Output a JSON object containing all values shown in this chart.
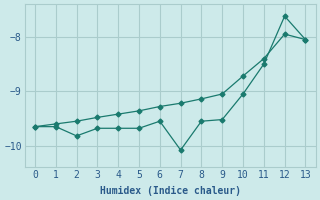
{
  "xlabel": "Humidex (Indice chaleur)",
  "ylabel": "",
  "background_color": "#cdeaea",
  "grid_color": "#aacccc",
  "line_color": "#1a7a6e",
  "xlim": [
    -0.5,
    13.5
  ],
  "ylim": [
    -10.4,
    -7.4
  ],
  "xticks": [
    0,
    1,
    2,
    3,
    4,
    5,
    6,
    7,
    8,
    9,
    10,
    11,
    12,
    13
  ],
  "yticks": [
    -10,
    -9,
    -8
  ],
  "line1_x": [
    0,
    1,
    2,
    3,
    4,
    5,
    6,
    7,
    8,
    9,
    10,
    11,
    12,
    13
  ],
  "line1_y": [
    -9.65,
    -9.65,
    -9.82,
    -9.68,
    -9.68,
    -9.68,
    -9.55,
    -10.08,
    -9.55,
    -9.52,
    -9.05,
    -8.5,
    -7.62,
    -8.05
  ],
  "line2_x": [
    0,
    1,
    2,
    3,
    4,
    5,
    6,
    7,
    8,
    9,
    10,
    11,
    12,
    13
  ],
  "line2_y": [
    -9.65,
    -9.6,
    -9.55,
    -9.48,
    -9.42,
    -9.36,
    -9.28,
    -9.22,
    -9.14,
    -9.05,
    -8.72,
    -8.4,
    -7.95,
    -8.05
  ]
}
